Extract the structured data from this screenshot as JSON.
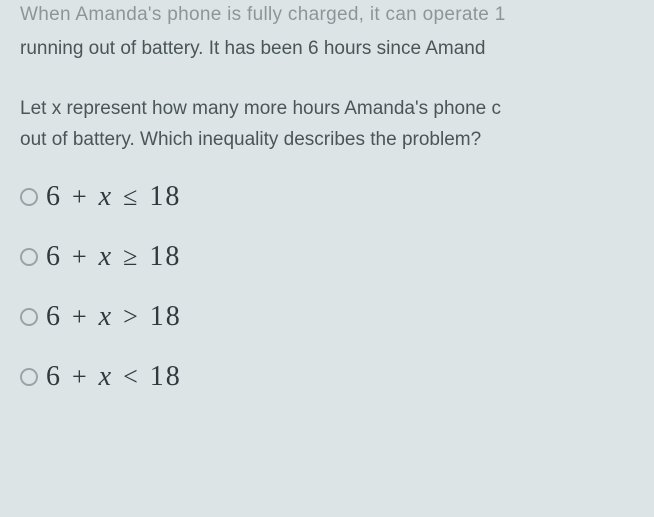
{
  "context": {
    "line1": "When Amanda's phone is fully charged, it can operate 1",
    "line2": "running out of battery. It has been 6 hours since Amand"
  },
  "question": {
    "line1": "Let x represent how many more hours Amanda's phone c",
    "line2": "out of battery. Which inequality describes the problem?"
  },
  "options": [
    {
      "lhs_a": "6",
      "op1": "+",
      "var": "x",
      "rel": "≤",
      "rhs": "18"
    },
    {
      "lhs_a": "6",
      "op1": "+",
      "var": "x",
      "rel": "≥",
      "rhs": "18"
    },
    {
      "lhs_a": "6",
      "op1": "+",
      "var": "x",
      "rel": ">",
      "rhs": "18"
    },
    {
      "lhs_a": "6",
      "op1": "+",
      "var": "x",
      "rel": "<",
      "rhs": "18"
    }
  ],
  "styling": {
    "background_color": "#dde4e6",
    "text_color": "#4a5558",
    "math_color": "#2f3a3e",
    "radio_border": "#9aa4a7",
    "body_fontsize": 19,
    "math_fontsize": 28
  }
}
